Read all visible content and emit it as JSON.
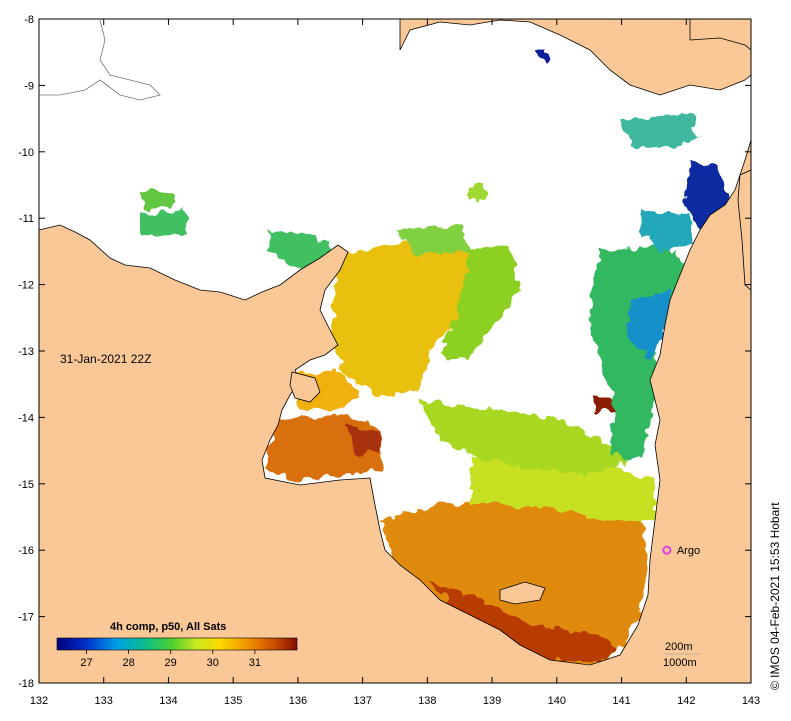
{
  "map": {
    "timestamp": "31-Jan-2021 22Z",
    "credit": "©  IMOS 04-Feb-2021 15:53 Hobart",
    "x_axis": {
      "min": 132,
      "max": 143,
      "ticks": [
        "132",
        "133",
        "134",
        "135",
        "136",
        "137",
        "138",
        "139",
        "140",
        "141",
        "142",
        "143"
      ]
    },
    "y_axis": {
      "min": -18,
      "max": -8,
      "ticks": [
        "-8",
        "-9",
        "-10",
        "-11",
        "-12",
        "-13",
        "-14",
        "-15",
        "-16",
        "-17",
        "-18"
      ]
    },
    "argo": {
      "label": "Argo",
      "lon": 141.7,
      "lat": -16.0,
      "color": "#e040e0"
    },
    "depth_legend": {
      "line1": "200m",
      "line2": "1000m"
    },
    "colorbar": {
      "title": "4h comp, p50, All Sats",
      "min": 26.3,
      "max": 32.0,
      "tick_labels": [
        "27",
        "28",
        "29",
        "30",
        "31"
      ],
      "tick_values": [
        27,
        28,
        29,
        30,
        31
      ]
    },
    "colors": {
      "land": "#f9c896",
      "sea_no_data": "#ffffff",
      "coast": "#000000"
    }
  }
}
